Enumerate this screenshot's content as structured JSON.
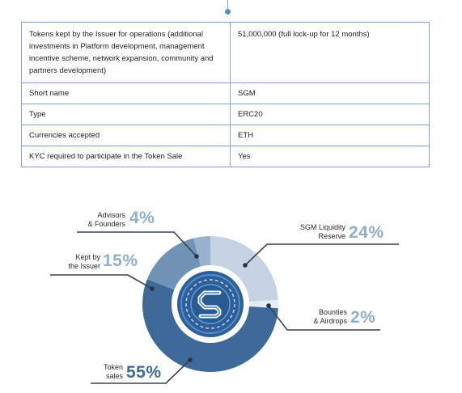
{
  "table": {
    "rows": [
      {
        "key": "Tokens kept by the Issuer for operations (additional investments in Platform development, management incentive scheme, network expansion, community and partners development)",
        "value": "51,000,000 (full lock-up for 12 months)"
      },
      {
        "key": "Short name",
        "value": "SGM"
      },
      {
        "key": "Type",
        "value": "ERC20"
      },
      {
        "key": "Currencies accepted",
        "value": "ETH"
      },
      {
        "key": "KYC required to participate in the Token Sale",
        "value": "Yes"
      }
    ]
  },
  "chart_data": {
    "type": "pie",
    "title": "",
    "slices": [
      {
        "label_line1": "SGM Liquidity",
        "label_line2": "Reserve",
        "value": 24,
        "value_text": "24%",
        "color": "#c5d3e2"
      },
      {
        "label_line1": "Bounties",
        "label_line2": "& Airdrops",
        "value": 2,
        "value_text": "2%",
        "color": "#e6ecf3"
      },
      {
        "label_line1": "Token",
        "label_line2": "sales",
        "value": 55,
        "value_text": "55%",
        "color": "#3e6a9a"
      },
      {
        "label_line1": "Kept by",
        "label_line2": "the Issuer",
        "value": 15,
        "value_text": "15%",
        "color": "#7194b6"
      },
      {
        "label_line1": "Advisors",
        "label_line2": "& Founders",
        "value": 4,
        "value_text": "4%",
        "color": "#99b3cc"
      }
    ],
    "center_logo": "sgm-logo-icon"
  }
}
